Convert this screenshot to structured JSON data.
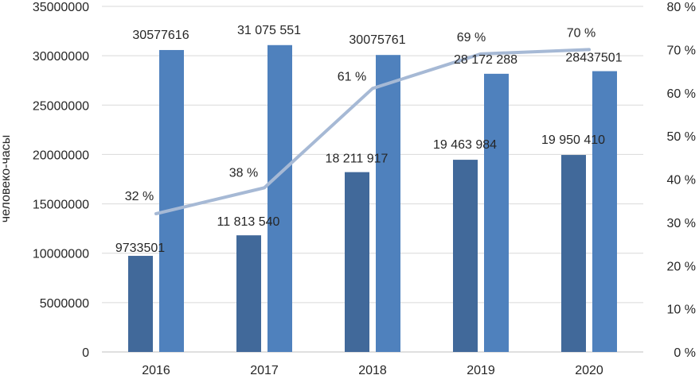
{
  "chart_data": {
    "type": "bar",
    "categories": [
      "2016",
      "2017",
      "2018",
      "2019",
      "2020"
    ],
    "series": [
      {
        "name": "series-1",
        "kind": "bar",
        "axis": "left",
        "color": "#41699A",
        "values": [
          9733501,
          11813540,
          18211917,
          19463984,
          19950410
        ],
        "labels": [
          "9733501",
          "11 813 540",
          "18 211 917",
          "19 463 984",
          "19 950 410"
        ]
      },
      {
        "name": "series-2",
        "kind": "bar",
        "axis": "left",
        "color": "#4F81BD",
        "values": [
          30577616,
          31075551,
          30075761,
          28172288,
          28437501
        ],
        "labels": [
          "30577616",
          "31 075 551",
          "30075761",
          "28 172 288",
          "28437501"
        ]
      },
      {
        "name": "series-3",
        "kind": "line",
        "axis": "right",
        "color": "#A6B9D5",
        "values": [
          32,
          38,
          61,
          69,
          70
        ],
        "labels": [
          "32 %",
          "38 %",
          "61 %",
          "69 %",
          "70 %"
        ]
      }
    ],
    "ylabel": "человеко-часы",
    "ylim": [
      0,
      35000000
    ],
    "y_ticks": [
      "0",
      "5000000",
      "10000000",
      "15000000",
      "20000000",
      "25000000",
      "30000000",
      "35000000"
    ],
    "y2lim": [
      0,
      80
    ],
    "y2_ticks": [
      "0 %",
      "10 %",
      "20 %",
      "30 %",
      "40 %",
      "50 %",
      "60 %",
      "70 %",
      "80 %"
    ],
    "grid": true
  }
}
